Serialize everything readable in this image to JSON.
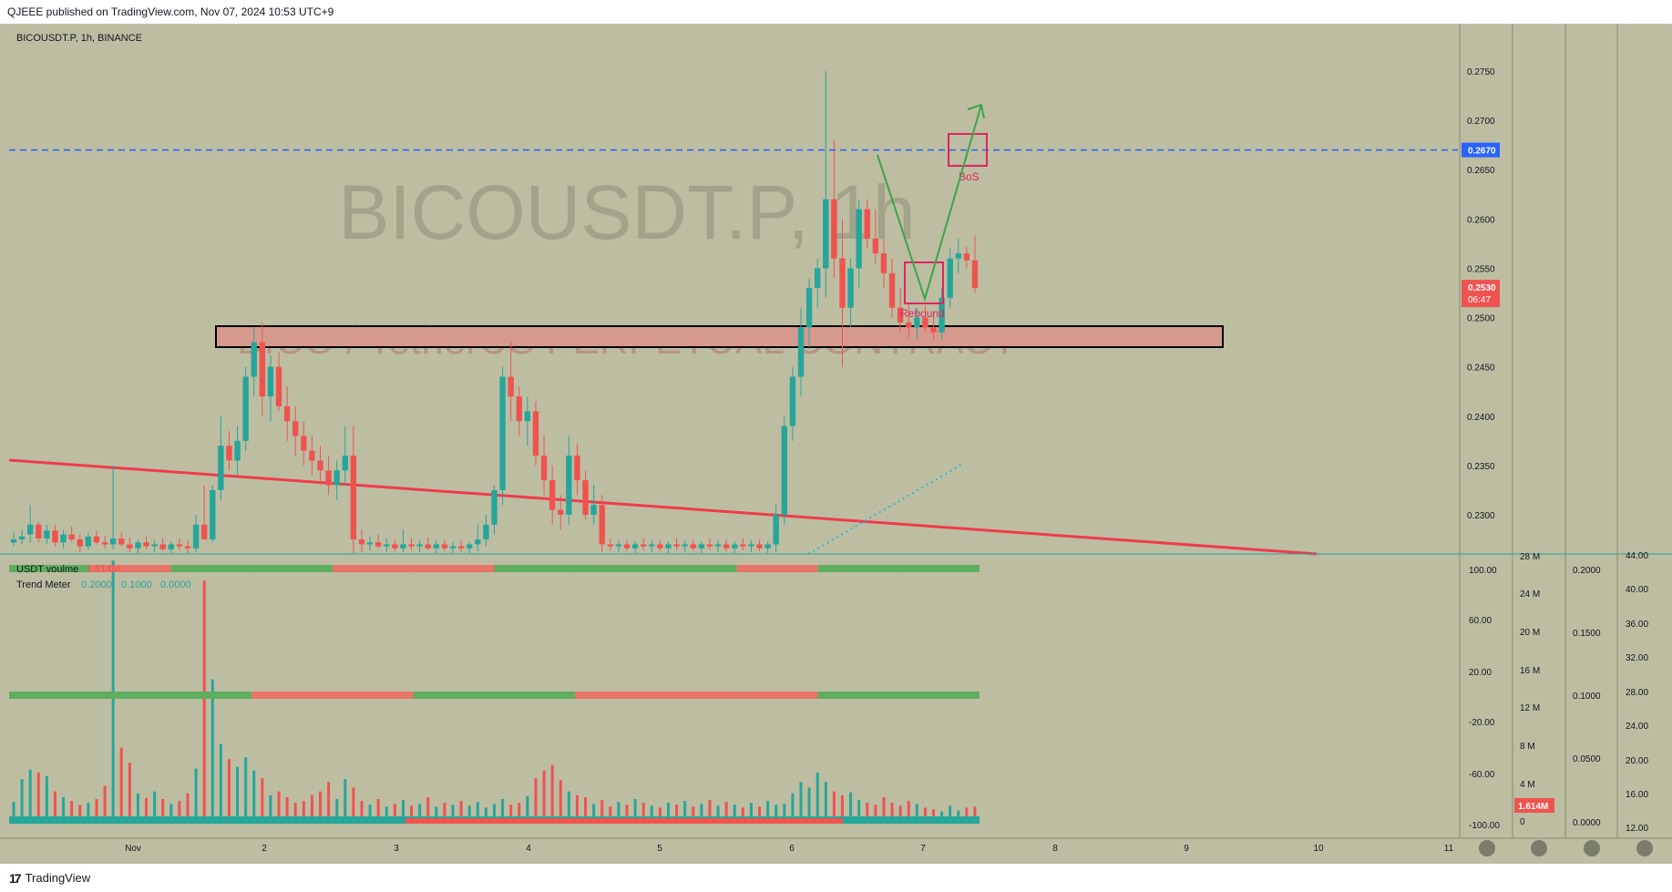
{
  "publish_line": "QJEEE published on TradingView.com, Nov 07, 2024 10:53 UTC+9",
  "symbol_line": "BICOUSDT.P, 1h, BINANCE",
  "watermark_big": "BICOUSDT.P, 1h",
  "watermark_small": "BICO / TetherUS PERPETUAL CONTRACT",
  "footer_brand": "TradingView",
  "footer_logo_mark": "17",
  "colors": {
    "background": "#bdbda2",
    "bull": "#26a69a",
    "bear": "#ef5350",
    "zone_fill": "#d69a8c",
    "trend_line": "#ef3b4c",
    "dashed_level": "#2962ff",
    "arrow": "#3aa649",
    "box": "#e0245e",
    "dotted": "#33b6c9"
  },
  "chart_data": [
    {
      "type": "candlestick",
      "title": "BICOUSDT.P, 1h, BINANCE",
      "x_ticks": [
        "Nov",
        "2",
        "3",
        "4",
        "5",
        "6",
        "7",
        "8",
        "9",
        "10",
        "11"
      ],
      "y_ticks": [
        "0.2750",
        "0.2700",
        "0.2650",
        "0.2600",
        "0.2550",
        "0.2500",
        "0.2450",
        "0.2400",
        "0.2350",
        "0.2300"
      ],
      "ylim": [
        0.226,
        0.2775
      ],
      "candles_ohlc": [
        [
          0.2272,
          0.2282,
          0.2268,
          0.2275
        ],
        [
          0.2275,
          0.2285,
          0.227,
          0.2278
        ],
        [
          0.228,
          0.231,
          0.2272,
          0.229
        ],
        [
          0.229,
          0.2293,
          0.2272,
          0.2276
        ],
        [
          0.2276,
          0.229,
          0.227,
          0.2284
        ],
        [
          0.2284,
          0.229,
          0.2268,
          0.2272
        ],
        [
          0.2272,
          0.2285,
          0.2266,
          0.228
        ],
        [
          0.228,
          0.2288,
          0.2272,
          0.2275
        ],
        [
          0.2275,
          0.228,
          0.2262,
          0.2268
        ],
        [
          0.2268,
          0.2282,
          0.2264,
          0.2278
        ],
        [
          0.2278,
          0.2284,
          0.227,
          0.2272
        ],
        [
          0.2272,
          0.2279,
          0.2266,
          0.227
        ],
        [
          0.227,
          0.235,
          0.2265,
          0.2276
        ],
        [
          0.2276,
          0.2282,
          0.2268,
          0.227
        ],
        [
          0.227,
          0.2277,
          0.2262,
          0.2266
        ],
        [
          0.2266,
          0.2275,
          0.226,
          0.2272
        ],
        [
          0.2272,
          0.2278,
          0.2265,
          0.2268
        ],
        [
          0.2268,
          0.2274,
          0.2262,
          0.227
        ],
        [
          0.227,
          0.2276,
          0.2263,
          0.2265
        ],
        [
          0.2265,
          0.2273,
          0.226,
          0.227
        ],
        [
          0.227,
          0.2276,
          0.2264,
          0.2268
        ],
        [
          0.2268,
          0.2274,
          0.2261,
          0.2266
        ],
        [
          0.2266,
          0.23,
          0.2262,
          0.229
        ],
        [
          0.229,
          0.233,
          0.228,
          0.2275
        ],
        [
          0.2275,
          0.233,
          0.2272,
          0.2325
        ],
        [
          0.2325,
          0.24,
          0.2315,
          0.237
        ],
        [
          0.237,
          0.2385,
          0.2345,
          0.2355
        ],
        [
          0.2355,
          0.239,
          0.234,
          0.2375
        ],
        [
          0.2375,
          0.245,
          0.2365,
          0.244
        ],
        [
          0.244,
          0.249,
          0.242,
          0.2475
        ],
        [
          0.2475,
          0.2495,
          0.24,
          0.242
        ],
        [
          0.242,
          0.2462,
          0.2395,
          0.245
        ],
        [
          0.245,
          0.2465,
          0.2405,
          0.241
        ],
        [
          0.241,
          0.243,
          0.2375,
          0.2395
        ],
        [
          0.2395,
          0.241,
          0.236,
          0.238
        ],
        [
          0.238,
          0.2395,
          0.235,
          0.2365
        ],
        [
          0.2365,
          0.238,
          0.234,
          0.2355
        ],
        [
          0.2355,
          0.237,
          0.233,
          0.2345
        ],
        [
          0.2345,
          0.236,
          0.232,
          0.233
        ],
        [
          0.233,
          0.2355,
          0.2315,
          0.2345
        ],
        [
          0.2345,
          0.239,
          0.233,
          0.236
        ],
        [
          0.236,
          0.239,
          0.226,
          0.2275
        ],
        [
          0.2275,
          0.2285,
          0.2262,
          0.227
        ],
        [
          0.227,
          0.2278,
          0.2264,
          0.2272
        ],
        [
          0.2272,
          0.228,
          0.2266,
          0.2268
        ],
        [
          0.2268,
          0.2276,
          0.2262,
          0.227
        ],
        [
          0.227,
          0.2275,
          0.2263,
          0.2266
        ],
        [
          0.2266,
          0.2285,
          0.2262,
          0.227
        ],
        [
          0.227,
          0.2276,
          0.2264,
          0.2268
        ],
        [
          0.2268,
          0.2274,
          0.2262,
          0.227
        ],
        [
          0.227,
          0.2277,
          0.2264,
          0.2266
        ],
        [
          0.2266,
          0.2274,
          0.226,
          0.227
        ],
        [
          0.227,
          0.2275,
          0.2263,
          0.2266
        ],
        [
          0.2266,
          0.2273,
          0.226,
          0.2268
        ],
        [
          0.2268,
          0.2274,
          0.2262,
          0.2266
        ],
        [
          0.2266,
          0.2272,
          0.226,
          0.227
        ],
        [
          0.227,
          0.229,
          0.2263,
          0.2275
        ],
        [
          0.2275,
          0.23,
          0.2268,
          0.229
        ],
        [
          0.229,
          0.233,
          0.228,
          0.2325
        ],
        [
          0.2325,
          0.245,
          0.231,
          0.244
        ],
        [
          0.244,
          0.2475,
          0.2395,
          0.242
        ],
        [
          0.242,
          0.243,
          0.238,
          0.2395
        ],
        [
          0.2395,
          0.242,
          0.237,
          0.2405
        ],
        [
          0.2405,
          0.2415,
          0.235,
          0.236
        ],
        [
          0.236,
          0.238,
          0.232,
          0.2335
        ],
        [
          0.2335,
          0.235,
          0.229,
          0.2305
        ],
        [
          0.2305,
          0.232,
          0.2285,
          0.23
        ],
        [
          0.23,
          0.238,
          0.229,
          0.236
        ],
        [
          0.236,
          0.2372,
          0.232,
          0.2335
        ],
        [
          0.2335,
          0.2345,
          0.2295,
          0.23
        ],
        [
          0.23,
          0.233,
          0.229,
          0.231
        ],
        [
          0.231,
          0.232,
          0.2262,
          0.227
        ],
        [
          0.227,
          0.2276,
          0.2264,
          0.2268
        ],
        [
          0.2268,
          0.2274,
          0.2262,
          0.227
        ],
        [
          0.227,
          0.2275,
          0.2263,
          0.2266
        ],
        [
          0.2266,
          0.2273,
          0.226,
          0.227
        ],
        [
          0.227,
          0.2276,
          0.2264,
          0.2268
        ],
        [
          0.2268,
          0.2274,
          0.2262,
          0.227
        ],
        [
          0.227,
          0.2275,
          0.2263,
          0.2266
        ],
        [
          0.2266,
          0.2273,
          0.226,
          0.227
        ],
        [
          0.227,
          0.2276,
          0.2264,
          0.2268
        ],
        [
          0.2268,
          0.2274,
          0.2262,
          0.227
        ],
        [
          0.227,
          0.2275,
          0.2263,
          0.2266
        ],
        [
          0.2266,
          0.2273,
          0.226,
          0.227
        ],
        [
          0.227,
          0.2276,
          0.2264,
          0.2268
        ],
        [
          0.2268,
          0.2274,
          0.2262,
          0.227
        ],
        [
          0.227,
          0.2275,
          0.2263,
          0.2266
        ],
        [
          0.2266,
          0.2273,
          0.226,
          0.227
        ],
        [
          0.227,
          0.2276,
          0.2264,
          0.2268
        ],
        [
          0.2268,
          0.2274,
          0.2262,
          0.227
        ],
        [
          0.227,
          0.2275,
          0.2263,
          0.2266
        ],
        [
          0.2266,
          0.2273,
          0.226,
          0.227
        ],
        [
          0.227,
          0.231,
          0.2262,
          0.23
        ],
        [
          0.23,
          0.24,
          0.229,
          0.239
        ],
        [
          0.239,
          0.245,
          0.2375,
          0.244
        ],
        [
          0.244,
          0.251,
          0.242,
          0.249
        ],
        [
          0.249,
          0.254,
          0.247,
          0.253
        ],
        [
          0.253,
          0.256,
          0.251,
          0.255
        ],
        [
          0.255,
          0.275,
          0.252,
          0.262
        ],
        [
          0.262,
          0.268,
          0.254,
          0.256
        ],
        [
          0.256,
          0.26,
          0.245,
          0.251
        ],
        [
          0.251,
          0.256,
          0.249,
          0.255
        ],
        [
          0.255,
          0.262,
          0.253,
          0.261
        ],
        [
          0.261,
          0.262,
          0.257,
          0.258
        ],
        [
          0.258,
          0.261,
          0.2555,
          0.2565
        ],
        [
          0.2565,
          0.258,
          0.253,
          0.2545
        ],
        [
          0.2545,
          0.256,
          0.25,
          0.251
        ],
        [
          0.251,
          0.253,
          0.2485,
          0.2495
        ],
        [
          0.2495,
          0.2515,
          0.248,
          0.249
        ],
        [
          0.249,
          0.251,
          0.2478,
          0.25
        ],
        [
          0.25,
          0.2512,
          0.2485,
          0.249
        ],
        [
          0.249,
          0.2505,
          0.2478,
          0.2485
        ],
        [
          0.2485,
          0.253,
          0.2478,
          0.252
        ],
        [
          0.252,
          0.257,
          0.251,
          0.256
        ],
        [
          0.256,
          0.258,
          0.2545,
          0.2565
        ],
        [
          0.2565,
          0.2572,
          0.255,
          0.2558
        ],
        [
          0.2558,
          0.2583,
          0.2525,
          0.253
        ]
      ]
    },
    {
      "type": "bar",
      "title": "USDT voulme",
      "legend_value": "1.614M",
      "y_ticks": [
        "28 M",
        "24 M",
        "20 M",
        "16 M",
        "12 M",
        "8 M",
        "4 M",
        "0"
      ],
      "ylim": [
        0,
        28
      ],
      "volume_millions": [
        2.1,
        4.5,
        5.5,
        5.2,
        4.8,
        3.2,
        2.6,
        2.2,
        1.8,
        2.0,
        2.4,
        3.8,
        27.5,
        7.8,
        6.2,
        3.0,
        2.5,
        3.2,
        2.4,
        1.9,
        2.2,
        3.0,
        5.6,
        25.4,
        15.0,
        8.2,
        6.6,
        5.8,
        6.8,
        5.4,
        4.6,
        2.8,
        3.2,
        2.6,
        2.0,
        2.2,
        2.8,
        3.2,
        4.2,
        2.4,
        4.5,
        3.6,
        2.2,
        1.8,
        2.4,
        1.6,
        1.9,
        2.3,
        1.7,
        1.9,
        2.6,
        1.6,
        2.0,
        1.8,
        2.2,
        1.7,
        2.1,
        1.5,
        1.9,
        2.4,
        1.8,
        2.0,
        2.7,
        4.6,
        5.4,
        6.0,
        4.4,
        3.2,
        2.8,
        2.6,
        1.9,
        2.3,
        1.6,
        2.1,
        1.8,
        2.4,
        2.0,
        1.7,
        1.5,
        2.0,
        1.8,
        2.2,
        1.6,
        1.9,
        2.3,
        1.7,
        2.1,
        1.8,
        1.5,
        2.0,
        1.6,
        2.2,
        1.8,
        1.9,
        3.0,
        4.2,
        3.6,
        5.2,
        4.2,
        3.2,
        2.8,
        3.1,
        2.3,
        2.0,
        1.8,
        2.6,
        2.0,
        1.7,
        2.2,
        1.9,
        1.5,
        1.3,
        1.1,
        1.7,
        1.2,
        1.5,
        1.6
      ]
    },
    {
      "type": "bar",
      "title": "Trend Meter",
      "legend_values": [
        "0.2000",
        "0.1000",
        "0.0000"
      ],
      "oscillator_y_ticks": [
        "100.00",
        "60.00",
        "20.00",
        "-20.00",
        "-60.00",
        "-100.00"
      ],
      "right_scale_ticks": [
        "0.2000",
        "0.1500",
        "0.1000",
        "0.0500",
        "0.0000"
      ],
      "far_right_ticks": [
        "44.00",
        "40.00",
        "36.00",
        "32.00",
        "28.00",
        "24.00",
        "20.00",
        "16.00",
        "12.00"
      ],
      "trend_segments_row1": [
        "bull",
        "bear",
        "bull",
        "bull",
        "bear",
        "bear",
        "bull",
        "bull",
        "bull",
        "bear",
        "bull",
        "bull"
      ],
      "trend_segments_row2": [
        "bull",
        "bull",
        "bull",
        "bear",
        "bear",
        "bull",
        "bull",
        "bear",
        "bear",
        "bear",
        "bull",
        "bull"
      ]
    }
  ],
  "annotations": {
    "bos_label": "BoS",
    "rebound_label": "Rebound",
    "last_price_label": "0.2530",
    "countdown_label": "06:47",
    "level_label": "0.2670",
    "volume_badge": "1.614M"
  }
}
